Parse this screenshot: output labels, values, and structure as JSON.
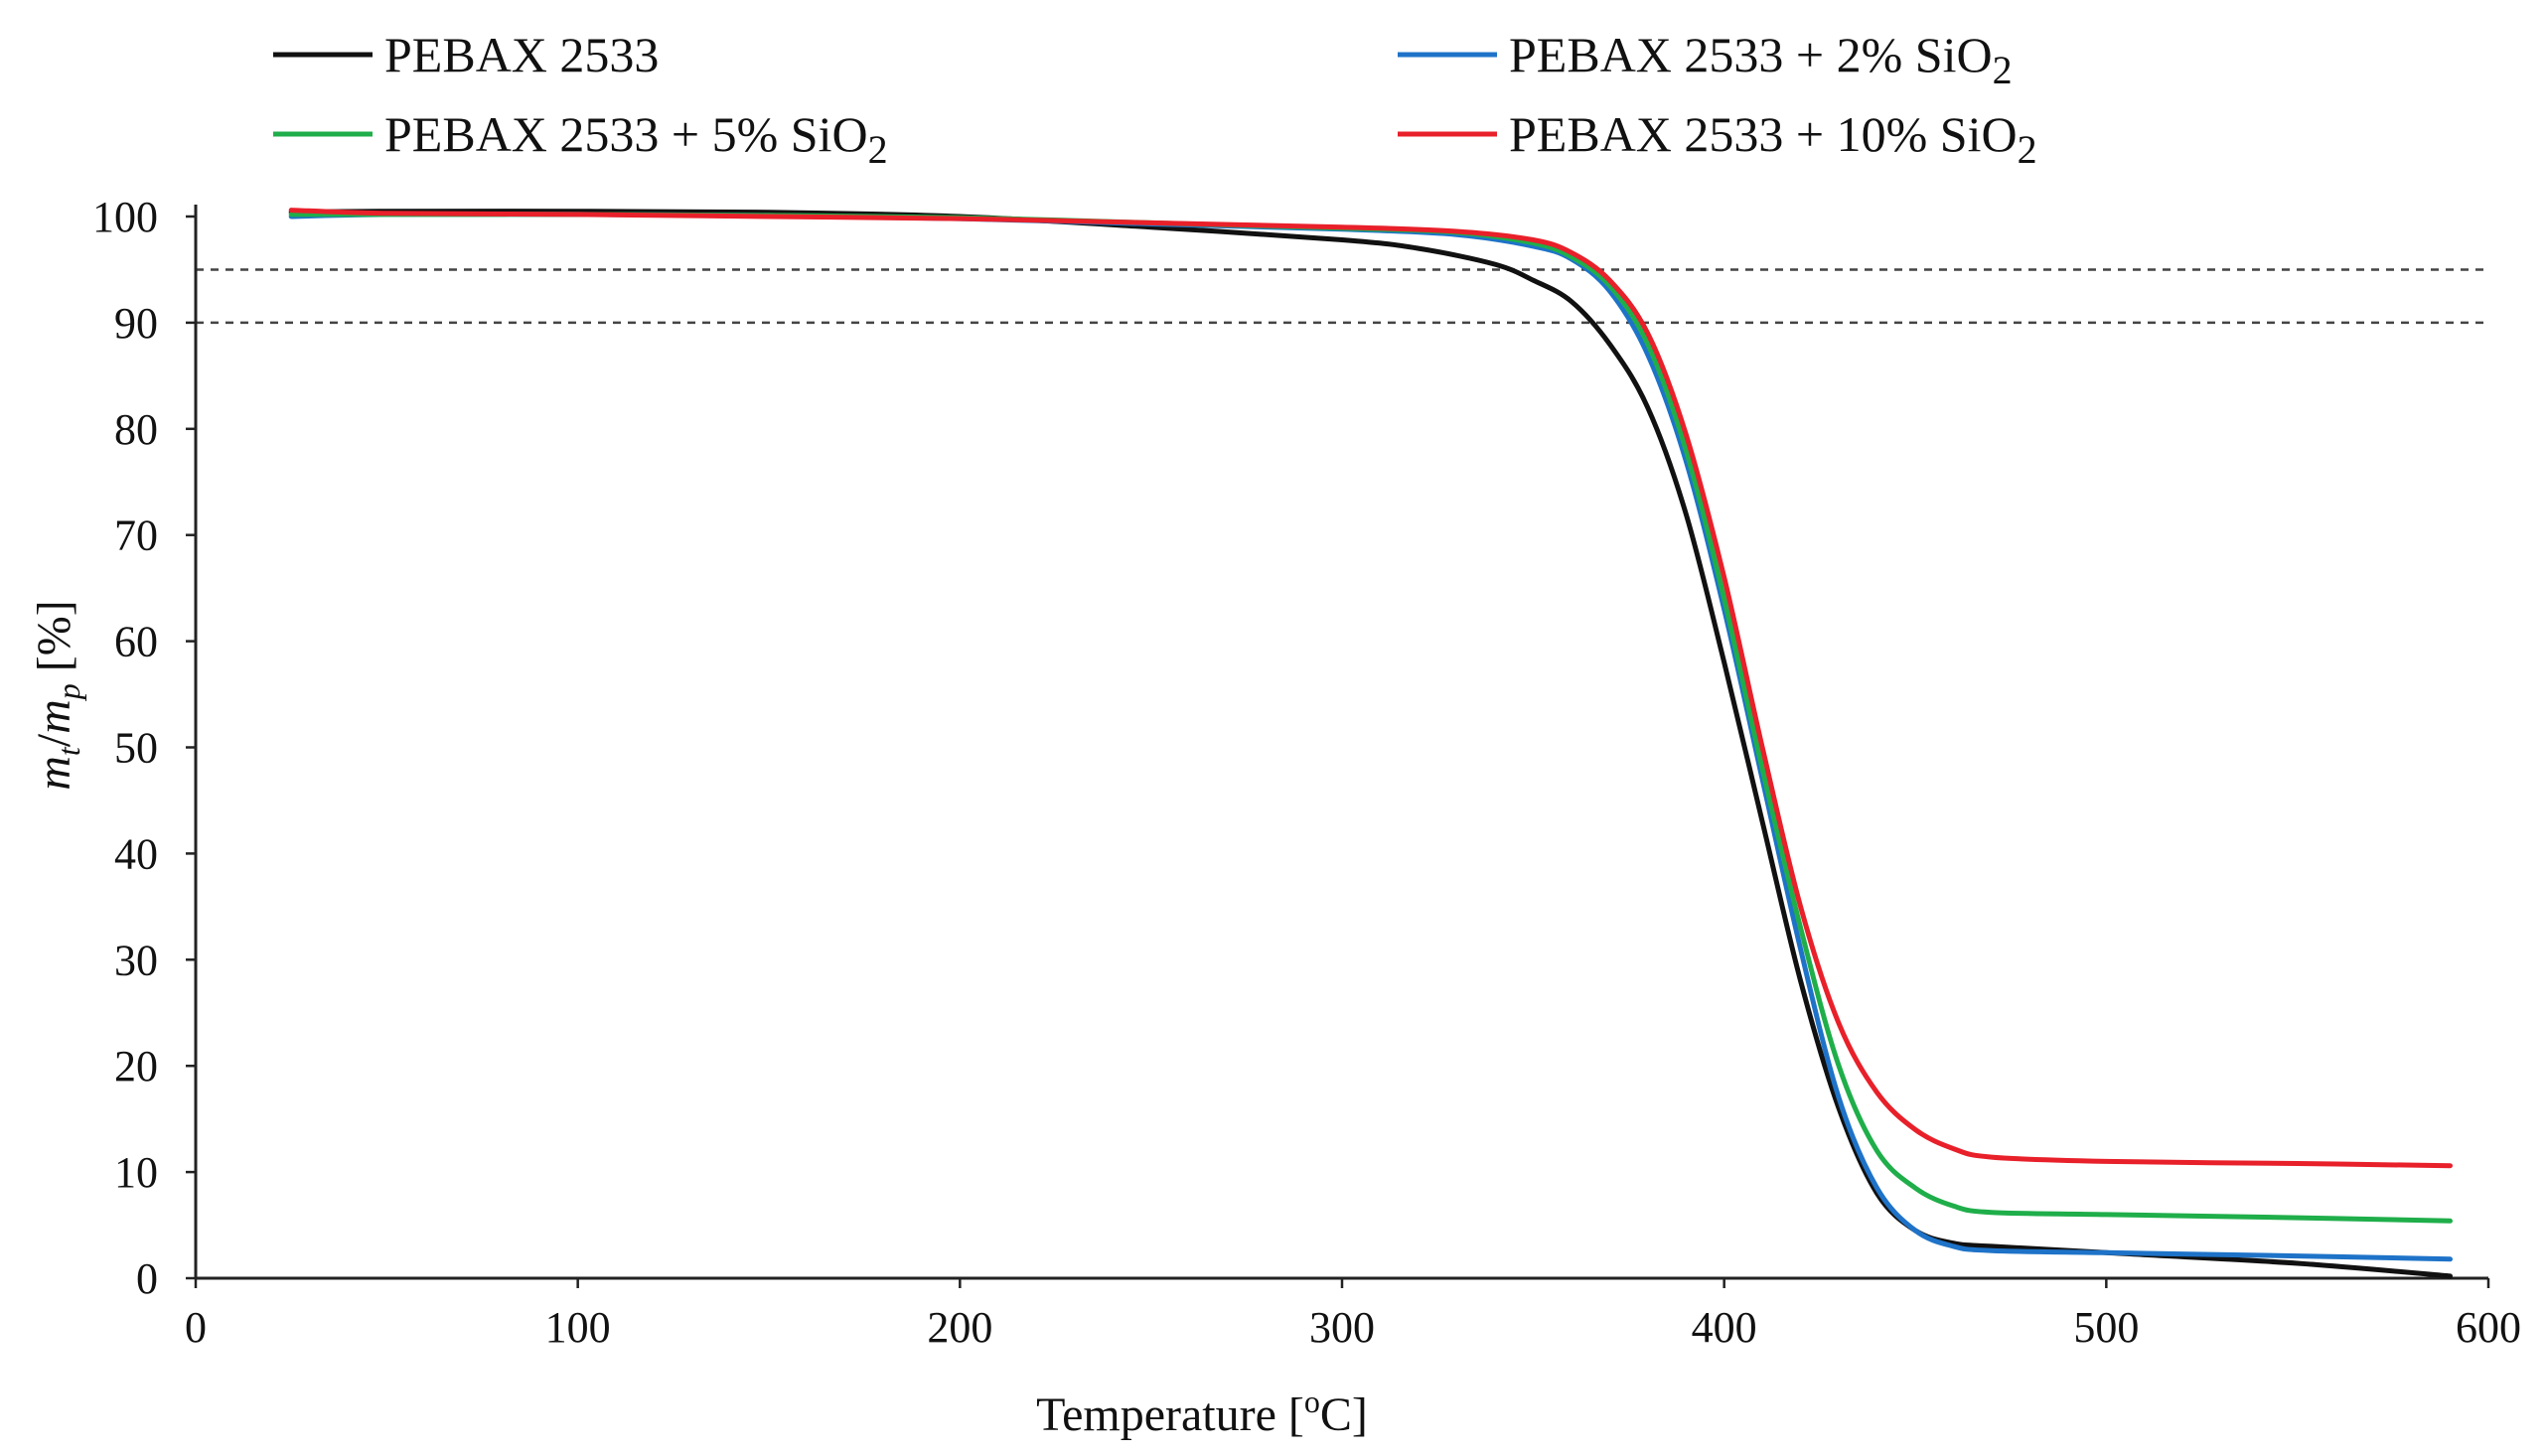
{
  "chart_data": {
    "type": "line",
    "title": "",
    "xlabel": {
      "main": "Temperature [",
      "sup": "o",
      "unit": "C]"
    },
    "ylabel": {
      "m1": "m",
      "sub1": "t",
      "slash": "/",
      "m2": "m",
      "sub2": "p",
      "unit": " [%]"
    },
    "xlim": [
      0,
      600
    ],
    "ylim": [
      0,
      100
    ],
    "xticks": [
      0,
      100,
      200,
      300,
      400,
      500,
      600
    ],
    "yticks": [
      0,
      10,
      20,
      30,
      40,
      50,
      60,
      70,
      80,
      90,
      100
    ],
    "reference_lines": [
      95,
      90
    ],
    "legend_position": "top",
    "series": [
      {
        "name": "PEBAX 2533",
        "label_parts": {
          "base": "PEBAX 2533",
          "formula": "",
          "sub": ""
        },
        "color": "#111111",
        "points": [
          [
            25,
            100.4
          ],
          [
            50,
            100.5
          ],
          [
            100,
            100.5
          ],
          [
            150,
            100.4
          ],
          [
            200,
            100.0
          ],
          [
            250,
            99.0
          ],
          [
            300,
            97.8
          ],
          [
            320,
            97.0
          ],
          [
            340,
            95.5
          ],
          [
            350,
            94.0
          ],
          [
            360,
            92.0
          ],
          [
            370,
            88.0
          ],
          [
            380,
            82.0
          ],
          [
            390,
            72.0
          ],
          [
            400,
            58.0
          ],
          [
            410,
            43.0
          ],
          [
            420,
            28.0
          ],
          [
            430,
            16.0
          ],
          [
            440,
            8.0
          ],
          [
            450,
            4.5
          ],
          [
            460,
            3.3
          ],
          [
            470,
            3.0
          ],
          [
            500,
            2.4
          ],
          [
            550,
            1.4
          ],
          [
            590,
            0.2
          ]
        ]
      },
      {
        "name": "PEBAX 2533 + 2% SiO2",
        "label_parts": {
          "base": "PEBAX 2533 + 2%",
          "formula": "SiO",
          "sub": "2"
        },
        "color": "#1e73c8",
        "points": [
          [
            25,
            100.0
          ],
          [
            50,
            100.2
          ],
          [
            100,
            100.2
          ],
          [
            150,
            100.1
          ],
          [
            200,
            99.8
          ],
          [
            250,
            99.3
          ],
          [
            300,
            98.8
          ],
          [
            330,
            98.3
          ],
          [
            350,
            97.2
          ],
          [
            360,
            96.0
          ],
          [
            370,
            93.0
          ],
          [
            380,
            87.0
          ],
          [
            390,
            77.0
          ],
          [
            400,
            63.0
          ],
          [
            410,
            47.0
          ],
          [
            420,
            31.0
          ],
          [
            430,
            17.0
          ],
          [
            440,
            8.5
          ],
          [
            450,
            4.5
          ],
          [
            460,
            3.0
          ],
          [
            470,
            2.6
          ],
          [
            500,
            2.4
          ],
          [
            550,
            2.1
          ],
          [
            590,
            1.8
          ]
        ]
      },
      {
        "name": "PEBAX 2533 + 5% SiO2",
        "label_parts": {
          "base": "PEBAX 2533 + 5%",
          "formula": "SiO",
          "sub": "2"
        },
        "color": "#1fae4a",
        "points": [
          [
            25,
            100.2
          ],
          [
            50,
            100.2
          ],
          [
            100,
            100.2
          ],
          [
            150,
            100.1
          ],
          [
            200,
            99.9
          ],
          [
            250,
            99.4
          ],
          [
            300,
            98.9
          ],
          [
            330,
            98.5
          ],
          [
            350,
            97.5
          ],
          [
            360,
            96.2
          ],
          [
            370,
            93.5
          ],
          [
            380,
            88.0
          ],
          [
            390,
            78.0
          ],
          [
            400,
            64.0
          ],
          [
            410,
            48.0
          ],
          [
            420,
            33.0
          ],
          [
            430,
            20.0
          ],
          [
            440,
            12.0
          ],
          [
            450,
            8.5
          ],
          [
            460,
            6.8
          ],
          [
            470,
            6.2
          ],
          [
            500,
            6.0
          ],
          [
            550,
            5.7
          ],
          [
            590,
            5.4
          ]
        ]
      },
      {
        "name": "PEBAX 2533 + 10% SiO2",
        "label_parts": {
          "base": "PEBAX 2533 + 10%",
          "formula": "SiO",
          "sub": "2"
        },
        "color": "#e8202a",
        "points": [
          [
            25,
            100.6
          ],
          [
            50,
            100.3
          ],
          [
            100,
            100.2
          ],
          [
            150,
            100.0
          ],
          [
            200,
            99.8
          ],
          [
            250,
            99.4
          ],
          [
            300,
            99.0
          ],
          [
            330,
            98.6
          ],
          [
            350,
            97.8
          ],
          [
            360,
            96.6
          ],
          [
            370,
            94.0
          ],
          [
            380,
            89.0
          ],
          [
            390,
            79.5
          ],
          [
            400,
            66.0
          ],
          [
            410,
            50.0
          ],
          [
            420,
            35.0
          ],
          [
            430,
            24.0
          ],
          [
            440,
            17.5
          ],
          [
            450,
            14.0
          ],
          [
            460,
            12.2
          ],
          [
            470,
            11.4
          ],
          [
            500,
            11.0
          ],
          [
            550,
            10.8
          ],
          [
            590,
            10.6
          ]
        ]
      }
    ]
  }
}
